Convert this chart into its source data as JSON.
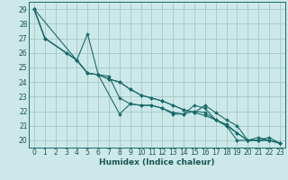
{
  "xlabel": "Humidex (Indice chaleur)",
  "bg_color": "#cce8e8",
  "grid_color": "#aacccc",
  "line_color": "#1a6b6b",
  "xlim": [
    -0.5,
    23.5
  ],
  "ylim": [
    19.5,
    29.5
  ],
  "xticks": [
    0,
    1,
    2,
    3,
    4,
    5,
    6,
    7,
    8,
    9,
    10,
    11,
    12,
    13,
    14,
    15,
    16,
    17,
    18,
    19,
    20,
    21,
    22,
    23
  ],
  "yticks": [
    20,
    21,
    22,
    23,
    24,
    25,
    26,
    27,
    28,
    29
  ],
  "series": [
    {
      "x": [
        0,
        1,
        3,
        4,
        5,
        6,
        8,
        9,
        10,
        11,
        12,
        13,
        14,
        15,
        16,
        17,
        18,
        19,
        20,
        21,
        22,
        23
      ],
      "y": [
        29,
        27,
        26,
        25.5,
        27.3,
        24.5,
        21.8,
        22.5,
        22.4,
        22.4,
        22.2,
        21.9,
        21.8,
        22.4,
        22.2,
        21.4,
        21.0,
        20.0,
        20.0,
        20.2,
        20.0,
        19.8
      ]
    },
    {
      "x": [
        0,
        1,
        3,
        4,
        5,
        6,
        7,
        8,
        9,
        10,
        11,
        12,
        13,
        14,
        15,
        16,
        17,
        18,
        19,
        20,
        21,
        22,
        23
      ],
      "y": [
        29,
        27,
        26,
        25.5,
        24.6,
        24.5,
        24.4,
        22.9,
        22.5,
        22.4,
        22.4,
        22.2,
        21.8,
        21.8,
        22.0,
        21.9,
        21.4,
        21.0,
        20.5,
        20.0,
        20.0,
        20.0,
        19.8
      ]
    },
    {
      "x": [
        0,
        1,
        4,
        5,
        6,
        7,
        8,
        9,
        10,
        11,
        12,
        13,
        14,
        15,
        16,
        17,
        18,
        19,
        20,
        21,
        22,
        23
      ],
      "y": [
        29,
        27,
        25.5,
        24.6,
        24.5,
        24.2,
        24.0,
        23.5,
        23.1,
        22.9,
        22.7,
        22.4,
        22.1,
        21.9,
        21.7,
        21.4,
        21.1,
        20.5,
        20.0,
        20.0,
        20.0,
        19.8
      ]
    },
    {
      "x": [
        0,
        5,
        6,
        7,
        8,
        9,
        10,
        11,
        12,
        13,
        14,
        15,
        16,
        17,
        18,
        19,
        20,
        21,
        22,
        23
      ],
      "y": [
        29,
        24.6,
        24.5,
        24.2,
        24.0,
        23.5,
        23.1,
        22.9,
        22.7,
        22.4,
        22.1,
        21.9,
        22.4,
        21.9,
        21.4,
        21.0,
        20.0,
        20.0,
        20.2,
        19.8
      ]
    }
  ]
}
